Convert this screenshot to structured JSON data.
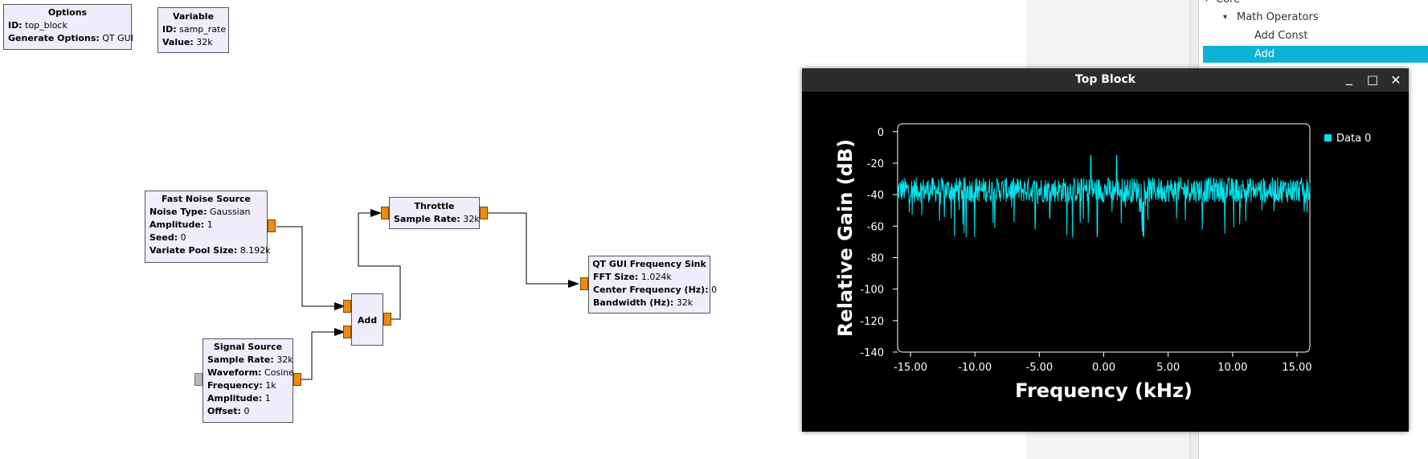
{
  "canvas": {
    "options_block": {
      "title": "Options",
      "rows": [
        {
          "k": "ID:",
          "v": "top_block"
        },
        {
          "k": "Generate Options:",
          "v": "QT GUI"
        }
      ]
    },
    "variable_block": {
      "title": "Variable",
      "rows": [
        {
          "k": "ID:",
          "v": "samp_rate"
        },
        {
          "k": "Value:",
          "v": "32k"
        }
      ]
    },
    "noise_block": {
      "title": "Fast Noise Source",
      "rows": [
        {
          "k": "Noise Type:",
          "v": "Gaussian"
        },
        {
          "k": "Amplitude:",
          "v": "1"
        },
        {
          "k": "Seed:",
          "v": "0"
        },
        {
          "k": "Variate Pool Size:",
          "v": "8.192k"
        }
      ]
    },
    "signal_block": {
      "title": "Signal Source",
      "rows": [
        {
          "k": "Sample Rate:",
          "v": "32k"
        },
        {
          "k": "Waveform:",
          "v": "Cosine"
        },
        {
          "k": "Frequency:",
          "v": "1k"
        },
        {
          "k": "Amplitude:",
          "v": "1"
        },
        {
          "k": "Offset:",
          "v": "0"
        }
      ]
    },
    "add_block": {
      "title": "Add"
    },
    "throttle_block": {
      "title": "Throttle",
      "rows": [
        {
          "k": "Sample Rate:",
          "v": "32k"
        }
      ]
    },
    "freqsink_block": {
      "title": "QT GUI Frequency Sink",
      "rows": [
        {
          "k": "FFT Size:",
          "v": "1.024k"
        },
        {
          "k": "Center Frequency (Hz):",
          "v": "0"
        },
        {
          "k": "Bandwidth (Hz):",
          "v": "32k"
        }
      ]
    }
  },
  "tree": {
    "items": [
      {
        "label": "Core",
        "arrow": "▾"
      },
      {
        "label": "Math Operators",
        "arrow": "▾"
      },
      {
        "label": "Add Const",
        "arrow": ""
      },
      {
        "label": "Add",
        "arrow": ""
      }
    ]
  },
  "window": {
    "title": "Top Block",
    "minimize": "_",
    "maximize": "□",
    "close": "✕"
  },
  "colors": {
    "trace": "#00e5ee",
    "selection": "#0ab4d6",
    "port": "#f08a0f",
    "block_bg": "#f0ecfb"
  },
  "chart_data": {
    "type": "line",
    "xlabel": "Frequency (kHz)",
    "ylabel": "Relative Gain (dB)",
    "xlim": [
      -16,
      16
    ],
    "ylim": [
      -140,
      5
    ],
    "xticks": [
      -15,
      -10,
      -5,
      0,
      5,
      10,
      15
    ],
    "xtick_labels": [
      "-15.00",
      "-10.00",
      "-5.00",
      "0.00",
      "5.00",
      "10.00",
      "15.00"
    ],
    "yticks": [
      0,
      -20,
      -40,
      -60,
      -80,
      -100,
      -120,
      -140
    ],
    "ytick_labels": [
      "0",
      "-20",
      "-40",
      "-60",
      "-80",
      "-100",
      "-120",
      "-140"
    ],
    "legend": "top-right",
    "series": [
      {
        "name": "Data 0",
        "noise_floor_db": -37,
        "spread_db": 8,
        "peaks": [
          {
            "x": -1.0,
            "y": -15
          },
          {
            "x": 1.0,
            "y": -15
          }
        ],
        "min_dip_db": -67
      }
    ]
  }
}
